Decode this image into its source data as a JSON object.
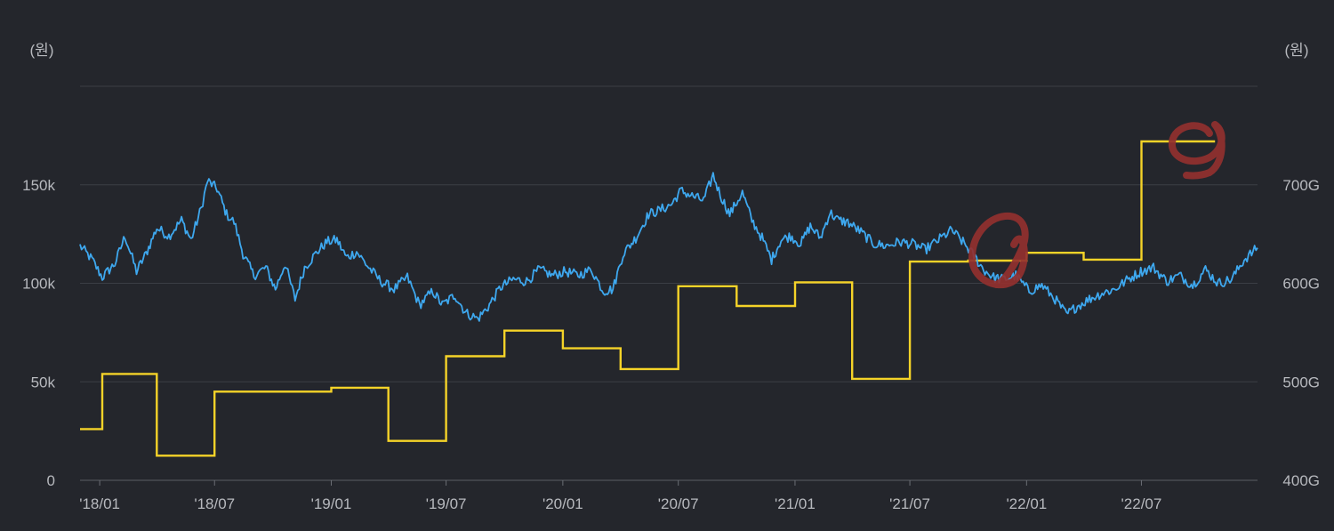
{
  "chart_data": {
    "type": "line",
    "left_unit": "(원)",
    "right_unit": "(원)",
    "x_tick_labels": [
      "'18/01",
      "'18/07",
      "'19/01",
      "'19/07",
      "'20/01",
      "'20/07",
      "'21/01",
      "'21/07",
      "'22/01",
      "'22/07"
    ],
    "y_left_ticks": [
      {
        "value": 0,
        "label": "0"
      },
      {
        "value": 50000,
        "label": "50k"
      },
      {
        "value": 100000,
        "label": "100k"
      },
      {
        "value": 150000,
        "label": "150k"
      }
    ],
    "y_right_ticks": [
      {
        "value": 400,
        "label": "400G"
      },
      {
        "value": 500,
        "label": "500G"
      },
      {
        "value": 600,
        "label": "600G"
      },
      {
        "value": 700,
        "label": "700G"
      }
    ],
    "y_left_range": [
      0,
      200000
    ],
    "y_right_range": [
      400,
      800
    ],
    "x_range": [
      "2017-12-01",
      "2022-12-31"
    ],
    "grid": true,
    "series": [
      {
        "axis": "left",
        "color": "#3ea8ef",
        "x": [
          "2017-12-01",
          "2017-12-20",
          "2018-01-05",
          "2018-01-25",
          "2018-02-10",
          "2018-02-28",
          "2018-03-15",
          "2018-04-01",
          "2018-04-20",
          "2018-05-10",
          "2018-05-25",
          "2018-06-10",
          "2018-06-20",
          "2018-07-05",
          "2018-07-20",
          "2018-08-01",
          "2018-08-15",
          "2018-09-01",
          "2018-09-20",
          "2018-10-05",
          "2018-10-20",
          "2018-11-05",
          "2018-11-20",
          "2018-12-10",
          "2018-12-25",
          "2019-01-10",
          "2019-01-25",
          "2019-02-10",
          "2019-03-01",
          "2019-03-20",
          "2019-04-10",
          "2019-05-01",
          "2019-05-20",
          "2019-06-10",
          "2019-06-25",
          "2019-07-15",
          "2019-08-01",
          "2019-08-20",
          "2019-09-05",
          "2019-09-25",
          "2019-10-15",
          "2019-11-05",
          "2019-11-25",
          "2019-12-15",
          "2020-01-05",
          "2020-01-25",
          "2020-02-15",
          "2020-03-05",
          "2020-03-20",
          "2020-04-05",
          "2020-04-25",
          "2020-05-15",
          "2020-06-01",
          "2020-06-20",
          "2020-07-05",
          "2020-07-25",
          "2020-08-10",
          "2020-08-25",
          "2020-09-05",
          "2020-09-20",
          "2020-10-10",
          "2020-10-25",
          "2020-11-10",
          "2020-11-25",
          "2020-12-10",
          "2020-12-25",
          "2021-01-10",
          "2021-01-25",
          "2021-02-10",
          "2021-02-25",
          "2021-03-10",
          "2021-03-25",
          "2021-04-15",
          "2021-05-05",
          "2021-05-25",
          "2021-06-15",
          "2021-07-05",
          "2021-07-25",
          "2021-08-15",
          "2021-09-05",
          "2021-09-25",
          "2021-10-10",
          "2021-10-25",
          "2021-11-10",
          "2021-11-25",
          "2021-12-15",
          "2022-01-05",
          "2022-01-25",
          "2022-02-15",
          "2022-03-05",
          "2022-03-20",
          "2022-04-10",
          "2022-04-30",
          "2022-05-20",
          "2022-06-10",
          "2022-06-30",
          "2022-07-20",
          "2022-08-10",
          "2022-08-30",
          "2022-09-20",
          "2022-10-10",
          "2022-10-30",
          "2022-11-20",
          "2022-12-10",
          "2022-12-31"
        ],
        "values": [
          119000,
          112000,
          103000,
          110000,
          124000,
          106000,
          115000,
          128000,
          124000,
          132000,
          122000,
          138000,
          152000,
          148000,
          135000,
          131000,
          115000,
          104000,
          108000,
          97000,
          110000,
          92000,
          108000,
          116000,
          121000,
          122000,
          113000,
          116000,
          108000,
          101000,
          97000,
          103000,
          89000,
          96000,
          89000,
          94000,
          85000,
          82000,
          88000,
          98000,
          102000,
          101000,
          107000,
          104000,
          106000,
          104000,
          107000,
          96000,
          97000,
          115000,
          123000,
          135000,
          137000,
          140000,
          147000,
          144000,
          142000,
          155000,
          145000,
          135000,
          146000,
          132000,
          123000,
          112000,
          122000,
          124000,
          120000,
          129000,
          123000,
          136000,
          132000,
          131000,
          126000,
          120000,
          119000,
          121000,
          120000,
          117000,
          122000,
          127000,
          120000,
          114000,
          107000,
          103000,
          102000,
          104000,
          96000,
          99000,
          92000,
          84000,
          88000,
          92000,
          95000,
          97000,
          102000,
          106000,
          108000,
          101000,
          104000,
          99000,
          107000,
          100000,
          102000,
          112000,
          118000
        ]
      },
      {
        "axis": "right",
        "color": "#f5d328",
        "x": [
          "2017-12-01",
          "2018-01-05",
          "2018-04-01",
          "2018-07-01",
          "2018-10-01",
          "2019-01-01",
          "2019-04-01",
          "2019-07-01",
          "2019-10-01",
          "2020-01-01",
          "2020-04-01",
          "2020-07-01",
          "2020-10-01",
          "2021-01-01",
          "2021-04-01",
          "2021-07-01",
          "2021-10-01",
          "2022-01-01",
          "2022-04-01",
          "2022-07-01",
          "2022-10-01"
        ],
        "values": [
          452,
          508,
          425,
          490,
          490,
          494,
          440,
          526,
          552,
          534,
          513,
          597,
          577,
          601,
          503,
          622,
          623,
          631,
          624,
          744,
          744
        ],
        "end": "2022-10-25"
      }
    ]
  }
}
